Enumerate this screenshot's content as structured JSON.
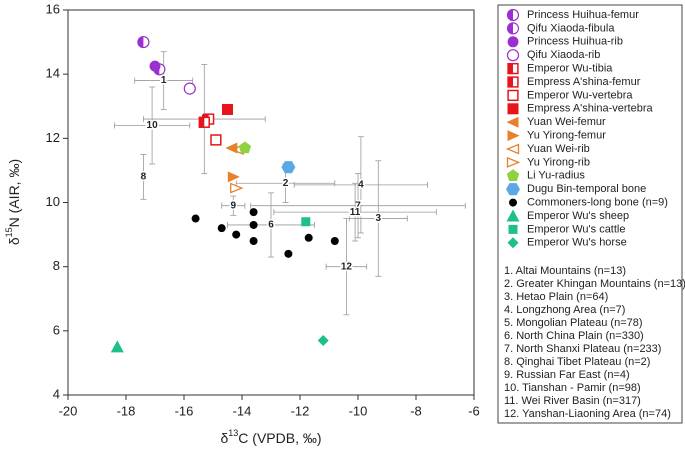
{
  "chart_data": {
    "type": "scatter",
    "x_label": [
      "δ",
      "13",
      "C (VPDB, ‰)"
    ],
    "y_label": [
      "δ",
      "15",
      "N (AIR, ‰)"
    ],
    "xlim": [
      -20,
      -6
    ],
    "ylim": [
      4,
      16
    ],
    "xticks": [
      -20,
      -18,
      -16,
      -14,
      -12,
      -10,
      -8,
      -6
    ],
    "yticks": [
      4,
      6,
      8,
      10,
      12,
      14,
      16
    ],
    "series": [
      {
        "name": "Princess Huihua-femur",
        "color": "#9b30d0",
        "marker": "circle-half",
        "x": [
          -17.4
        ],
        "values": [
          15.0
        ]
      },
      {
        "name": "Qifu Xiaoda-fibula",
        "color": "#9b30d0",
        "marker": "circle-half",
        "x": [
          -16.85
        ],
        "values": [
          14.15
        ]
      },
      {
        "name": "Princess Huihua-rib",
        "color": "#9b30d0",
        "marker": "circle",
        "x": [
          -17.0
        ],
        "values": [
          14.25
        ]
      },
      {
        "name": "Qifu Xiaoda-rib",
        "color": "#9b30d0",
        "marker": "circle-open",
        "x": [
          -15.8
        ],
        "values": [
          13.55
        ]
      },
      {
        "name": "Emperor Wu-tibia",
        "color": "#e8141b",
        "marker": "square-half",
        "x": [
          -15.15
        ],
        "values": [
          12.6
        ]
      },
      {
        "name": "Empress A'shina-femur",
        "color": "#e8141b",
        "marker": "square-half",
        "x": [
          -15.3
        ],
        "values": [
          12.5
        ]
      },
      {
        "name": "Emperor Wu-vertebra",
        "color": "#e8141b",
        "marker": "square-open",
        "x": [
          -14.9
        ],
        "values": [
          11.95
        ]
      },
      {
        "name": "Empress A'shina-vertebra",
        "color": "#e8141b",
        "marker": "square",
        "x": [
          -14.5
        ],
        "values": [
          12.9
        ]
      },
      {
        "name": "Yuan Wei-femur",
        "color": "#e8812a",
        "marker": "triangle-left",
        "x": [
          -14.35
        ],
        "values": [
          11.7
        ]
      },
      {
        "name": "Yu Yirong-femur",
        "color": "#e8812a",
        "marker": "triangle-right",
        "x": [
          -14.3
        ],
        "values": [
          10.8
        ]
      },
      {
        "name": "Yuan Wei-rib",
        "color": "#e8812a",
        "marker": "triangle-left-open",
        "x": [
          -14.15
        ],
        "values": [
          11.65
        ]
      },
      {
        "name": "Yu Yirong-rib",
        "color": "#e8812a",
        "marker": "triangle-right-open",
        "x": [
          -14.2
        ],
        "values": [
          10.45
        ]
      },
      {
        "name": "Li Yu-radius",
        "color": "#8fd13f",
        "marker": "pentagon",
        "x": [
          -13.9
        ],
        "values": [
          11.7
        ]
      },
      {
        "name": "Dugu Bin-temporal bone",
        "color": "#5aa9e6",
        "marker": "hexagon",
        "x": [
          -12.4
        ],
        "values": [
          11.1
        ]
      },
      {
        "name": "Commoners-long bone (n=9)",
        "color": "#000000",
        "marker": "dot",
        "x": [
          -15.6,
          -14.7,
          -14.2,
          -13.6,
          -13.6,
          -13.6,
          -12.4,
          -11.7,
          -10.8
        ],
        "values": [
          9.5,
          9.2,
          9.0,
          9.7,
          9.3,
          8.8,
          8.4,
          8.9,
          8.8
        ]
      },
      {
        "name": "Emperor Wu's sheep",
        "color": "#1dbf8a",
        "marker": "triangle-up",
        "x": [
          -18.3
        ],
        "values": [
          5.5
        ]
      },
      {
        "name": "Emperor Wu's cattle",
        "color": "#1dbf8a",
        "marker": "square-small",
        "x": [
          -11.8
        ],
        "values": [
          9.4
        ]
      },
      {
        "name": "Emperor Wu's horse",
        "color": "#1dbf8a",
        "marker": "diamond",
        "x": [
          -11.2
        ],
        "values": [
          5.7
        ]
      }
    ],
    "regions": {
      "color": "#9a9a9a",
      "number": [
        "1",
        "2",
        "3",
        "4",
        "5",
        "6",
        "7",
        "8",
        "9",
        "10",
        "11",
        "12"
      ],
      "label": [
        "1. Altai Mountains (n=13)",
        "2. Greater Khingan Mountains (n=13)",
        "3. Hetao Plain (n=64)",
        "4. Longzhong Area (n=7)",
        "5. Mongolian Plateau (n=78)",
        "6. North China Plain (n=330)",
        "7. North Shanxi Plateau (n=233)",
        "8. Qinghai Tibet Plateau (n=2)",
        "9. Russian Far East (n=4)",
        "10. Tianshan - Pamir (n=98)",
        "11. Wei River Basin (n=317)",
        "12. Yanshan-Liaoning Area (n=74)"
      ],
      "x": [
        -16.7,
        -12.5,
        -9.3,
        -9.9,
        -15.3,
        -13.0,
        -10.0,
        -17.4,
        -14.3,
        -17.1,
        -10.1,
        -10.4
      ],
      "values": [
        13.8,
        10.6,
        9.5,
        10.55,
        12.6,
        9.3,
        9.9,
        10.8,
        9.9,
        12.4,
        9.7,
        8.0
      ],
      "xerr": [
        1.0,
        1.7,
        1.0,
        2.3,
        2.1,
        1.5,
        3.7,
        0.1,
        0.4,
        1.3,
        2.8,
        0.7
      ],
      "yerr": [
        0.9,
        0.6,
        1.8,
        1.5,
        1.7,
        1.0,
        1.0,
        0.7,
        0.3,
        1.2,
        0.9,
        1.5
      ]
    }
  }
}
